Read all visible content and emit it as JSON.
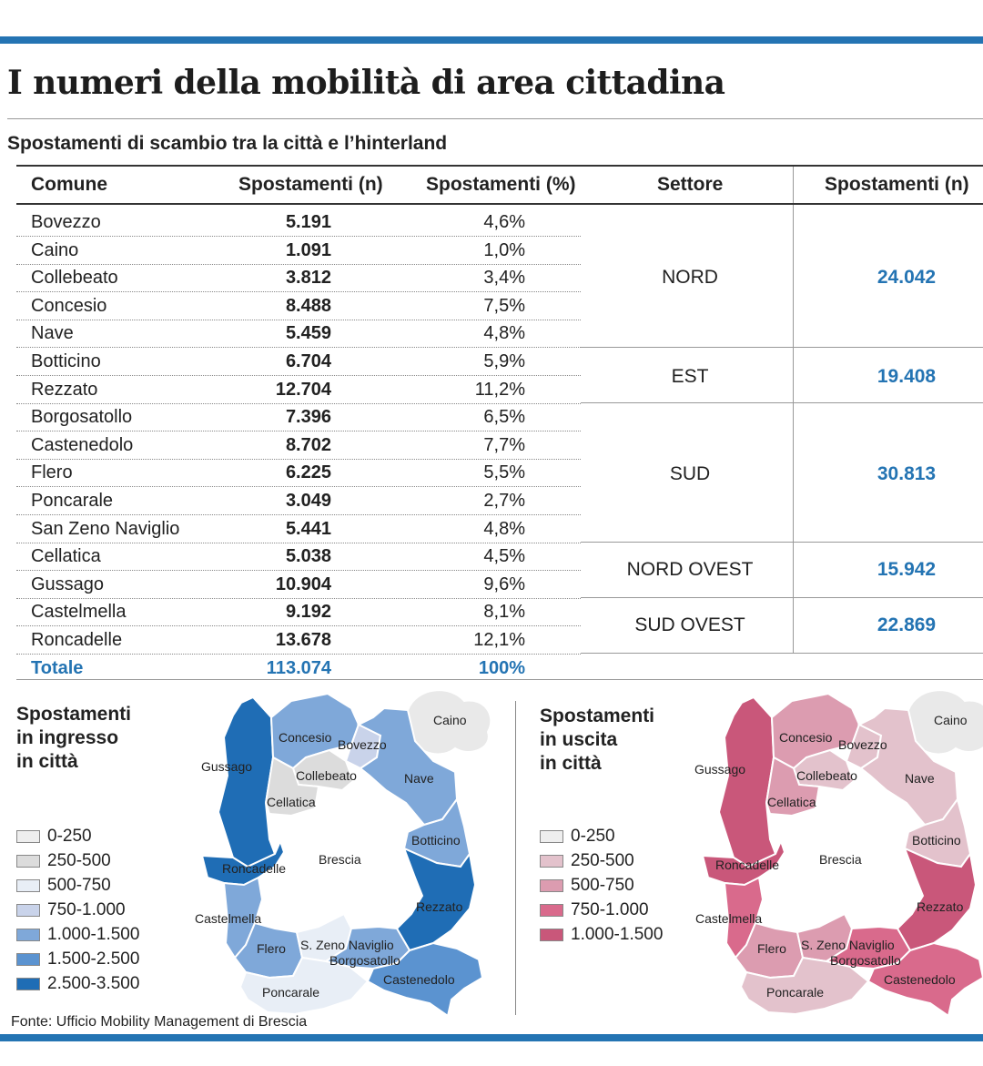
{
  "colors": {
    "bar": "#2474b3",
    "accent": "#2474b3",
    "blue_scale": [
      "#eeeeee",
      "#dcdcdc",
      "#e8eef6",
      "#c9d3ea",
      "#7fa8d9",
      "#5b93d0",
      "#1f6db5"
    ],
    "pink_scale": [
      "#eeeeee",
      "#e3c2cc",
      "#dc9cb0",
      "#d96a8c",
      "#c9577a"
    ],
    "cloud": "#e9e9e9"
  },
  "headline": "I numeri della mobilità di area cittadina",
  "subhead": "Spostamenti di scambio tra la città e l’hinterland",
  "chart_data": {
    "type": "table",
    "columns": [
      "Comune",
      "Spostamenti (n)",
      "Spostamenti (%)",
      "Settore",
      "Spostamenti (n)"
    ],
    "rows": [
      {
        "comune": "Bovezzo",
        "n": "5.191",
        "pct": "4,6%"
      },
      {
        "comune": "Caino",
        "n": "1.091",
        "pct": "1,0%"
      },
      {
        "comune": "Collebeato",
        "n": "3.812",
        "pct": "3,4%"
      },
      {
        "comune": "Concesio",
        "n": "8.488",
        "pct": "7,5%"
      },
      {
        "comune": "Nave",
        "n": "5.459",
        "pct": "4,8%"
      },
      {
        "comune": "Botticino",
        "n": "6.704",
        "pct": "5,9%"
      },
      {
        "comune": "Rezzato",
        "n": "12.704",
        "pct": "11,2%"
      },
      {
        "comune": "Borgosatollo",
        "n": "7.396",
        "pct": "6,5%"
      },
      {
        "comune": "Castenedolo",
        "n": "8.702",
        "pct": "7,7%"
      },
      {
        "comune": "Flero",
        "n": "6.225",
        "pct": "5,5%"
      },
      {
        "comune": "Poncarale",
        "n": "3.049",
        "pct": "2,7%"
      },
      {
        "comune": "San Zeno Naviglio",
        "n": "5.441",
        "pct": "4,8%"
      },
      {
        "comune": "Cellatica",
        "n": "5.038",
        "pct": "4,5%"
      },
      {
        "comune": "Gussago",
        "n": "10.904",
        "pct": "9,6%"
      },
      {
        "comune": "Castelmella",
        "n": "9.192",
        "pct": "8,1%"
      },
      {
        "comune": "Roncadelle",
        "n": "13.678",
        "pct": "12,1%"
      }
    ],
    "total": {
      "label": "Totale",
      "n": "113.074",
      "pct": "100%"
    },
    "sectors": [
      {
        "name": "NORD",
        "n": "24.042"
      },
      {
        "name": "EST",
        "n": "19.408"
      },
      {
        "name": "SUD",
        "n": "30.813"
      },
      {
        "name": "NORD OVEST",
        "n": "15.942"
      },
      {
        "name": "SUD OVEST",
        "n": "22.869"
      }
    ]
  },
  "maps": {
    "ingresso": {
      "title": [
        "Spostamenti",
        "in ingresso",
        "in città"
      ],
      "legend": [
        "0-250",
        "250-500",
        "500-750",
        "750-1.000",
        "1.000-1.500",
        "1.500-2.500",
        "2.500-3.500"
      ]
    },
    "uscita": {
      "title": [
        "Spostamenti",
        "in uscita",
        "in città"
      ],
      "legend": [
        "0-250",
        "250-500",
        "500-750",
        "750-1.000",
        "1.000-1.500"
      ]
    },
    "labels": {
      "caino": "Caino",
      "concesio": "Concesio",
      "bovezzo": "Bovezzo",
      "gussago": "Gussago",
      "collebeato": "Collebeato",
      "nave": "Nave",
      "cellatica": "Cellatica",
      "botticino": "Botticino",
      "brescia": "Brescia",
      "roncadelle": "Roncadelle",
      "rezzato": "Rezzato",
      "castelmella": "Castelmella",
      "szeno": "S. Zeno Naviglio",
      "flero": "Flero",
      "borgosatollo": "Borgosatollo",
      "castenedolo": "Castenedolo",
      "poncarale": "Poncarale"
    }
  },
  "source": "Fonte: Ufficio Mobility Management di Brescia"
}
